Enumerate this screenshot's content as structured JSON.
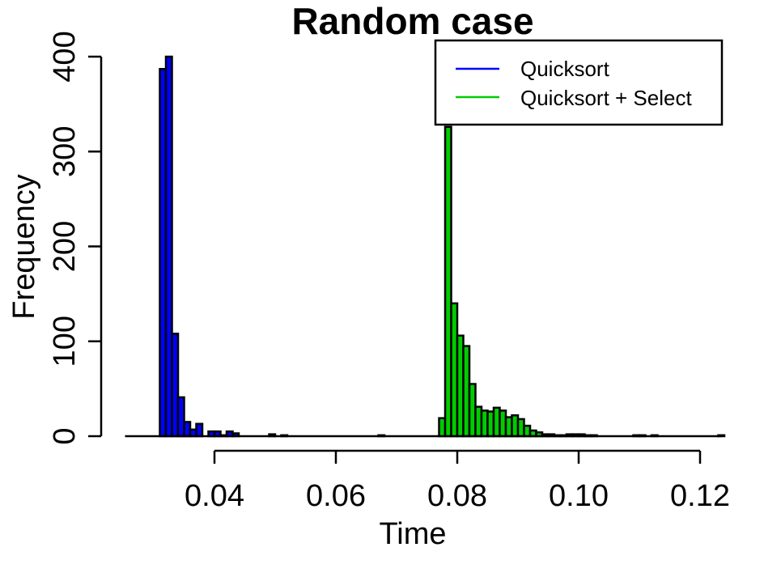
{
  "chart_data": {
    "type": "bar",
    "title": "Random case",
    "xlabel": "Time",
    "ylabel": "Frequency",
    "xlim": [
      0.025,
      0.1235
    ],
    "ylim": [
      0,
      400
    ],
    "x_ticks": [
      {
        "value": 0.04,
        "label": "0.04"
      },
      {
        "value": 0.06,
        "label": "0.06"
      },
      {
        "value": 0.08,
        "label": "0.08"
      },
      {
        "value": 0.1,
        "label": "0.10"
      },
      {
        "value": 0.12,
        "label": "0.12"
      }
    ],
    "y_ticks": [
      {
        "value": 0,
        "label": "0"
      },
      {
        "value": 100,
        "label": "100"
      },
      {
        "value": 200,
        "label": "200"
      },
      {
        "value": 300,
        "label": "300"
      },
      {
        "value": 400,
        "label": "400"
      }
    ],
    "bin_width": 0.001,
    "legend_position": "top-right",
    "series": [
      {
        "name": "Quicksort",
        "color": "#0000FF",
        "bin_start": 0.025,
        "values": [
          0,
          0,
          0,
          0,
          0,
          0,
          387,
          400,
          108,
          41,
          15,
          7,
          13,
          0,
          5,
          5,
          1,
          5,
          3,
          0,
          0,
          0,
          0,
          0,
          2,
          0,
          1,
          0,
          0,
          0,
          0,
          0,
          0,
          0,
          0,
          0,
          0,
          0,
          0,
          0,
          0,
          0,
          1
        ]
      },
      {
        "name": "Quicksort + Select",
        "color": "#00CC00",
        "bin_start": 0.077,
        "values": [
          19,
          326,
          140,
          106,
          95,
          55,
          31,
          27,
          26,
          30,
          27,
          20,
          22,
          18,
          11,
          6,
          4,
          2,
          2,
          1,
          1,
          2,
          2,
          2,
          1,
          1,
          0,
          0,
          0,
          0,
          0,
          0,
          1,
          1,
          0,
          1,
          0,
          0,
          0,
          0,
          0,
          0,
          0,
          0,
          0,
          0,
          1
        ]
      }
    ]
  }
}
